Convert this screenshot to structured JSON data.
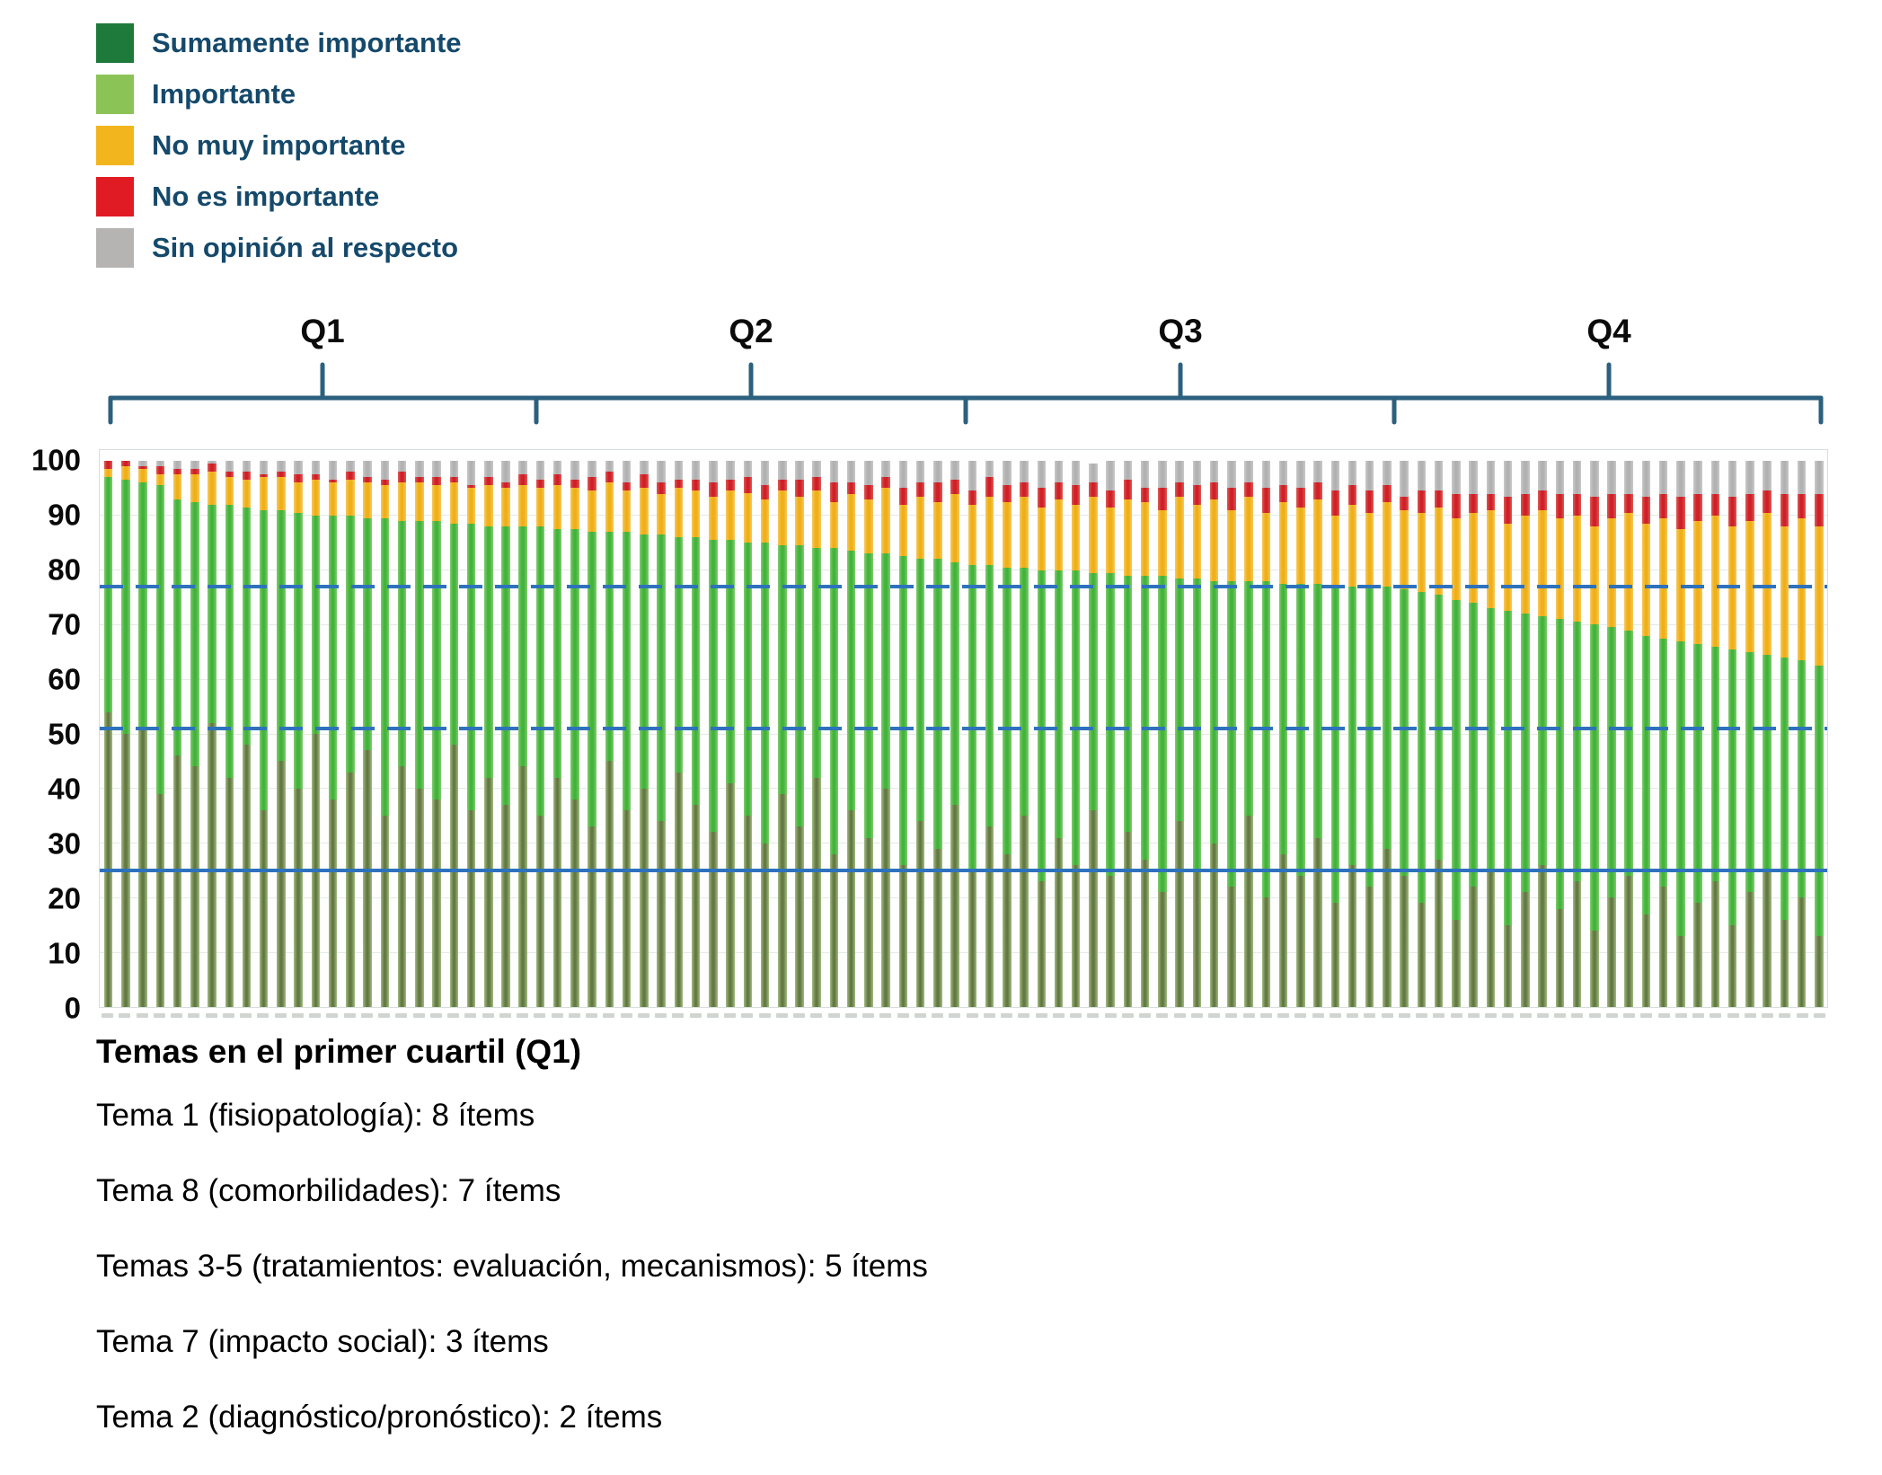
{
  "legend": {
    "items": [
      {
        "label": "Sumamente importante",
        "color": "#1e7a3b"
      },
      {
        "label": "Importante",
        "color": "#8cc356"
      },
      {
        "label": "No muy importante",
        "color": "#f3b51d"
      },
      {
        "label": "No es importante",
        "color": "#e11b24"
      },
      {
        "label": "Sin opinión al respecto",
        "color": "#b5b4b3"
      }
    ]
  },
  "quartiles": {
    "labels": [
      "Q1",
      "Q2",
      "Q3",
      "Q4"
    ],
    "items_per_quartile": 25
  },
  "footer": {
    "title": "Temas en el primer cuartil (Q1)",
    "lines": [
      "Tema 1 (fisiopatología): 8 ítems",
      "Tema 8 (comorbilidades): 7 ítems",
      "Temas 3-5 (tratamientos: evaluación, mecanismos): 5 ítems",
      "Tema 7 (impacto social): 3 ítems",
      "Tema 2 (diagnóstico/pronóstico): 2 ítems"
    ]
  },
  "chart_data": {
    "type": "bar",
    "stacked": true,
    "values_are_percent": true,
    "n_items": 100,
    "x_labels_visible": false,
    "ylim": [
      0,
      100
    ],
    "y_ticks": [
      100,
      90,
      80,
      70,
      60,
      50,
      40,
      30,
      20,
      10,
      0
    ],
    "grid": "faint horizontal every 10",
    "legend_position": "top-left",
    "reference_lines": [
      {
        "value": 77,
        "style": "dashed",
        "color": "#2e72bd"
      },
      {
        "value": 51,
        "style": "dashed",
        "color": "#2e72bd"
      },
      {
        "value": 25,
        "style": "solid",
        "color": "#2e72bd"
      }
    ],
    "series_order": [
      "Sumamente importante",
      "Importante",
      "No muy importante",
      "No es importante",
      "Sin opinión al respecto"
    ],
    "series_colors": [
      "#647a44",
      "#45b53c",
      "#f0af17",
      "#cf1f27",
      "#b3b3b3"
    ],
    "bars": [
      [
        54,
        43,
        1.5,
        1.5,
        0
      ],
      [
        50,
        46.5,
        2.5,
        1,
        0
      ],
      [
        51,
        45,
        2.5,
        0.5,
        1
      ],
      [
        39,
        56.5,
        2,
        1.5,
        1
      ],
      [
        46,
        47,
        4.5,
        1,
        1.5
      ],
      [
        44,
        48.5,
        5,
        1,
        1.5
      ],
      [
        52,
        40,
        6,
        1.5,
        0.5
      ],
      [
        42,
        50,
        5,
        1,
        2
      ],
      [
        48,
        43.5,
        5,
        1.5,
        2
      ],
      [
        36,
        55,
        6,
        0.5,
        2.5
      ],
      [
        45,
        46,
        6,
        1,
        2
      ],
      [
        40,
        50.5,
        5.5,
        1.5,
        2.5
      ],
      [
        50,
        40,
        6.5,
        1,
        2.5
      ],
      [
        38,
        52,
        6,
        0.5,
        3.5
      ],
      [
        43,
        47,
        6.5,
        1.5,
        2
      ],
      [
        47,
        42.5,
        6.5,
        1,
        3
      ],
      [
        35,
        54.5,
        6,
        1,
        3.5
      ],
      [
        44,
        45,
        7,
        2,
        2
      ],
      [
        40,
        49,
        7,
        1,
        3
      ],
      [
        38,
        51,
        6.5,
        1.5,
        3
      ],
      [
        48,
        40.5,
        7.5,
        1,
        3
      ],
      [
        36,
        52.5,
        6.5,
        0.5,
        4.5
      ],
      [
        42,
        46,
        7.5,
        1.5,
        3
      ],
      [
        37,
        51,
        7,
        1,
        4
      ],
      [
        44,
        44,
        7.5,
        2,
        2.5
      ],
      [
        35,
        53,
        7,
        1.5,
        3.5
      ],
      [
        42,
        45.5,
        8,
        2,
        2.5
      ],
      [
        38,
        49.5,
        7.5,
        1.5,
        3.5
      ],
      [
        33,
        54,
        7.5,
        2.5,
        3
      ],
      [
        45,
        42,
        9,
        2,
        2
      ],
      [
        36,
        51,
        7.5,
        1.5,
        4
      ],
      [
        40,
        46.5,
        8.5,
        2.5,
        2.5
      ],
      [
        34,
        52.5,
        7.5,
        2,
        4
      ],
      [
        43,
        43,
        9,
        1.5,
        3.5
      ],
      [
        37,
        49,
        8.5,
        2,
        3.5
      ],
      [
        32,
        53.5,
        8,
        2.5,
        4
      ],
      [
        41,
        44.5,
        9,
        2,
        3.5
      ],
      [
        35,
        50,
        9,
        3,
        3
      ],
      [
        30,
        55,
        8,
        2.5,
        4.5
      ],
      [
        39,
        45.5,
        10,
        2,
        3.5
      ],
      [
        33,
        51.5,
        9,
        3,
        3.5
      ],
      [
        42,
        42,
        10.5,
        2.5,
        3
      ],
      [
        28,
        56,
        8.5,
        3.5,
        4
      ],
      [
        36,
        47.5,
        10.5,
        2,
        4
      ],
      [
        31,
        52,
        10,
        2.5,
        4.5
      ],
      [
        40,
        43,
        12,
        2,
        3
      ],
      [
        26,
        56.5,
        9.5,
        3,
        5
      ],
      [
        34,
        48,
        11.5,
        2.5,
        4
      ],
      [
        29,
        53,
        10.5,
        3.5,
        4
      ],
      [
        37,
        44.5,
        12.5,
        2.5,
        3.5
      ],
      [
        25,
        56,
        11,
        2.5,
        5.5
      ],
      [
        33,
        48,
        12.5,
        3.5,
        3
      ],
      [
        28,
        52.5,
        12,
        3,
        4.5
      ],
      [
        35,
        45.5,
        13,
        2.5,
        4
      ],
      [
        23,
        57,
        11.5,
        3.5,
        5
      ],
      [
        31,
        49,
        13,
        3,
        4
      ],
      [
        26,
        54,
        12,
        3.5,
        4.5
      ],
      [
        36,
        43.5,
        14,
        2.5,
        3.5
      ],
      [
        24,
        55.5,
        12,
        3,
        5.5
      ],
      [
        32,
        47,
        14,
        3.5,
        3.5
      ],
      [
        27,
        52,
        13.5,
        2.5,
        5
      ],
      [
        21,
        58,
        12,
        4,
        5
      ],
      [
        34,
        44.5,
        15,
        2.5,
        4
      ],
      [
        25,
        53.5,
        13.5,
        3.5,
        4.5
      ],
      [
        30,
        48,
        15,
        3,
        4
      ],
      [
        22,
        56,
        13,
        4,
        5
      ],
      [
        35,
        43,
        15.5,
        2.5,
        4
      ],
      [
        20,
        58,
        12.5,
        4.5,
        5
      ],
      [
        28,
        49.5,
        15,
        3,
        4.5
      ],
      [
        24,
        53.5,
        14,
        3.5,
        5
      ],
      [
        31,
        46.5,
        15.5,
        3,
        4
      ],
      [
        19,
        58,
        13,
        4.5,
        5.5
      ],
      [
        26,
        51,
        15,
        3.5,
        4.5
      ],
      [
        22,
        55,
        13.5,
        4,
        5.5
      ],
      [
        29,
        48,
        15.5,
        3,
        4.5
      ],
      [
        24,
        52.5,
        14.5,
        2.5,
        6.5
      ],
      [
        19,
        57,
        14.5,
        4,
        5.5
      ],
      [
        27,
        48.5,
        16,
        3,
        5.5
      ],
      [
        16,
        58.5,
        15,
        4.5,
        6
      ],
      [
        22,
        52,
        16.5,
        3.5,
        6
      ],
      [
        25,
        48,
        18,
        3,
        6
      ],
      [
        15,
        57.5,
        16,
        5,
        6.5
      ],
      [
        21,
        51,
        18,
        4,
        6
      ],
      [
        26,
        45.5,
        19.5,
        3.5,
        5.5
      ],
      [
        18,
        53,
        18.5,
        4.5,
        6
      ],
      [
        23,
        47.5,
        19.5,
        4,
        6
      ],
      [
        14,
        56,
        18,
        5.5,
        6.5
      ],
      [
        20,
        49.5,
        20,
        4.5,
        6
      ],
      [
        24,
        45,
        21.5,
        3.5,
        6
      ],
      [
        17,
        51,
        20.5,
        5,
        6.5
      ],
      [
        22,
        45.5,
        22,
        4.5,
        6
      ],
      [
        13,
        54,
        20.5,
        6,
        6.5
      ],
      [
        19,
        47.5,
        22.5,
        5,
        6
      ],
      [
        23,
        43,
        24,
        4,
        6
      ],
      [
        15,
        50.5,
        22.5,
        5.5,
        6.5
      ],
      [
        21,
        44,
        24,
        5,
        6
      ],
      [
        25,
        39.5,
        26,
        4,
        5.5
      ],
      [
        16,
        48,
        24,
        6,
        6
      ],
      [
        20,
        43.5,
        26,
        4.5,
        6
      ],
      [
        13,
        49.5,
        25.5,
        6,
        6
      ]
    ]
  }
}
